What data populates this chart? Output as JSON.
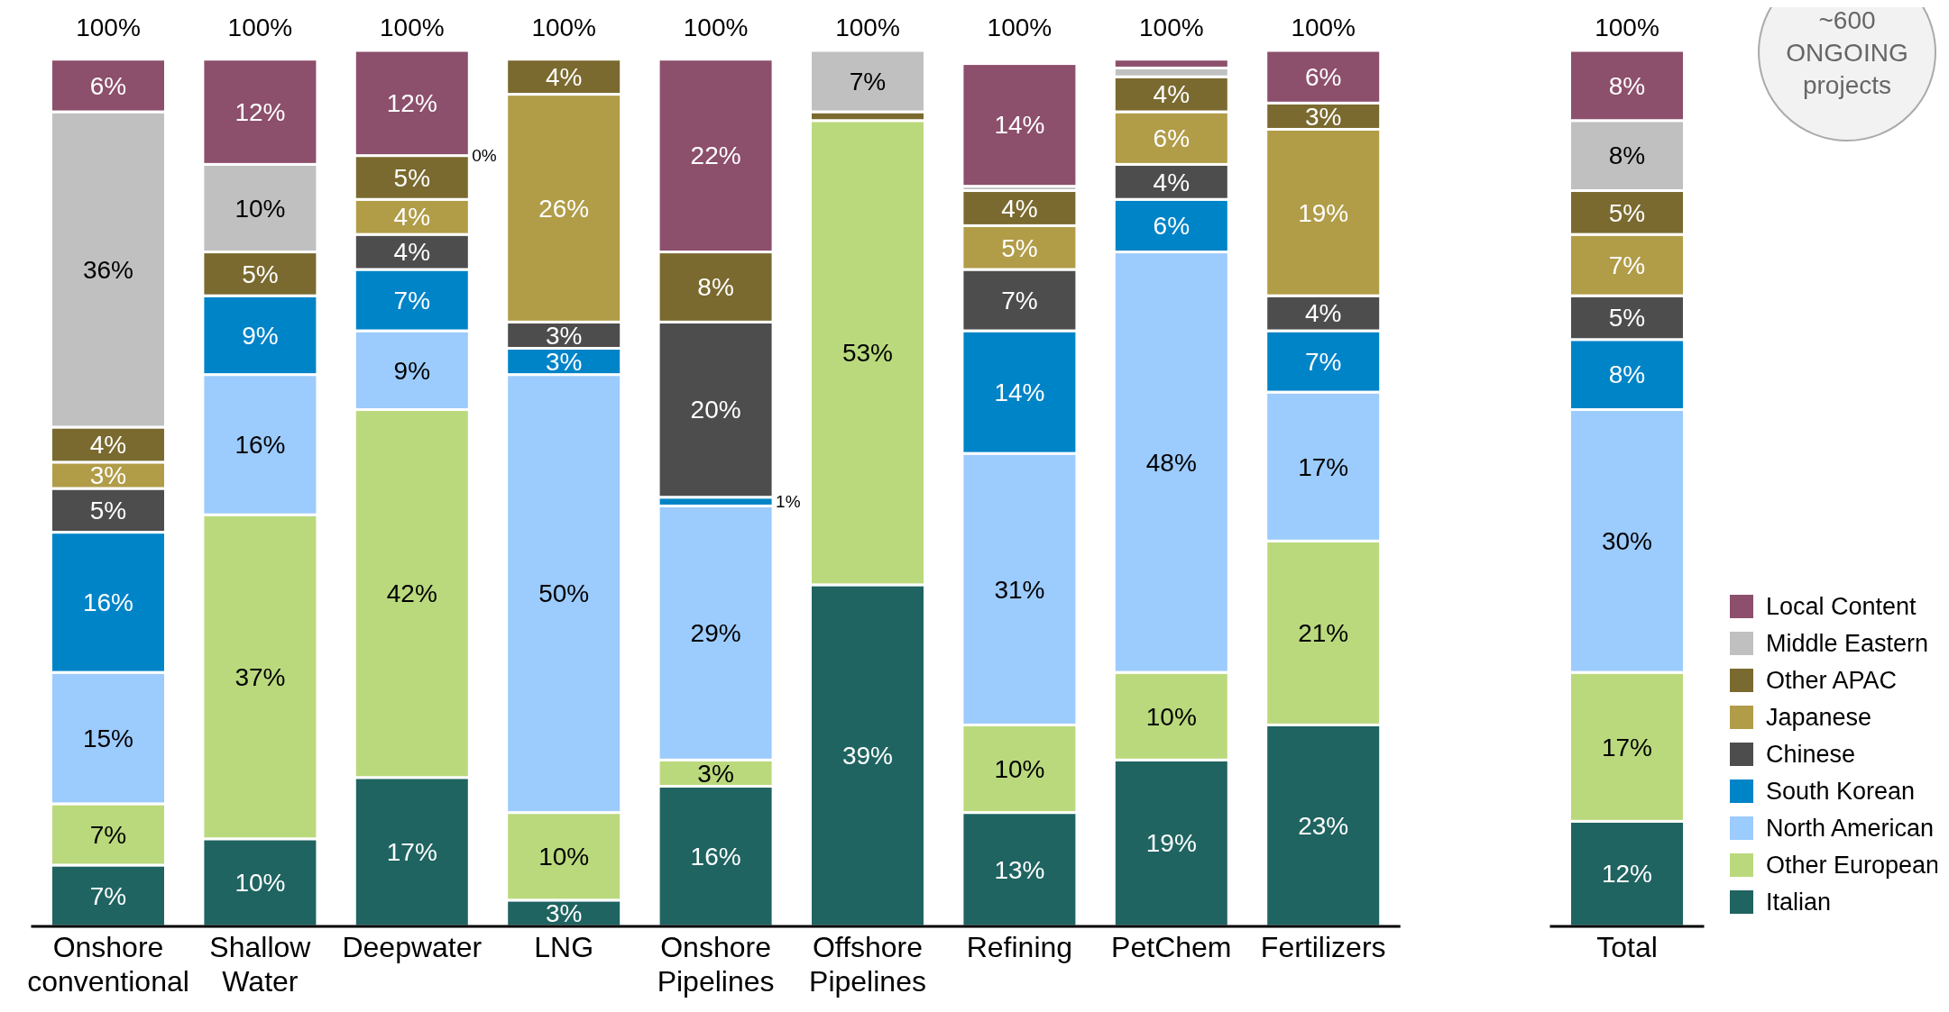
{
  "chart_data": {
    "type": "bar",
    "stacked": true,
    "categories": [
      "Onshore conventional",
      "Shallow Water",
      "Deepwater",
      "LNG",
      "Onshore Pipelines",
      "Offshore Pipelines",
      "Refining",
      "PetChem",
      "Fertilizers",
      null,
      "Total"
    ],
    "ylim": [
      0,
      100
    ],
    "tick_labels": "x",
    "legend": "right",
    "series": [
      {
        "name": "Italian",
        "color": "#1f6461",
        "values": [
          7,
          10,
          17,
          3,
          16,
          39,
          13,
          19,
          23,
          null,
          12
        ],
        "value_labels": [
          "7%",
          "10%",
          "17%",
          "3%",
          "16%",
          "39%",
          "13%",
          "19%",
          "23%",
          null,
          "12%"
        ]
      },
      {
        "name": "Other European",
        "color": "#bad97d",
        "values": [
          7,
          37,
          42,
          10,
          3,
          53,
          10,
          10,
          21,
          null,
          17
        ],
        "value_labels": [
          "7%",
          "37%",
          "42%",
          "10%",
          "3%",
          "53%",
          "10%",
          "10%",
          "21%",
          null,
          "17%"
        ]
      },
      {
        "name": "North American",
        "color": "#9ccbfd",
        "values": [
          15,
          16,
          9,
          50,
          29,
          null,
          31,
          48,
          17,
          null,
          30
        ],
        "value_labels": [
          "15%",
          "16%",
          "9%",
          "50%",
          "29%",
          null,
          "31%",
          "48%",
          "17%",
          null,
          "30%"
        ]
      },
      {
        "name": "South Korean",
        "color": "#0084c8",
        "values": [
          16,
          9,
          7,
          3,
          1,
          null,
          14,
          6,
          7,
          null,
          8
        ],
        "value_labels": [
          "16%",
          "9%",
          "7%",
          "3%",
          "1%",
          null,
          "14%",
          "6%",
          "7%",
          null,
          "8%"
        ]
      },
      {
        "name": "Chinese",
        "color": "#4d4d4d",
        "values": [
          5,
          null,
          4,
          3,
          20,
          null,
          7,
          4,
          4,
          null,
          5
        ],
        "value_labels": [
          "5%",
          null,
          "4%",
          "3%",
          "20%",
          null,
          "7%",
          "4%",
          "4%",
          null,
          "5%"
        ]
      },
      {
        "name": "Japanese",
        "color": "#b19c48",
        "values": [
          3,
          null,
          4,
          26,
          null,
          null,
          5,
          6,
          19,
          null,
          7
        ],
        "value_labels": [
          "3%",
          null,
          "4%",
          "26%",
          null,
          null,
          "5%",
          "6%",
          "19%",
          null,
          "7%"
        ]
      },
      {
        "name": "Other APAC",
        "color": "#7a6a2f",
        "values": [
          4,
          5,
          5,
          4,
          8,
          1,
          4,
          4,
          3,
          null,
          5
        ],
        "value_labels": [
          "4%",
          "5%",
          "5%",
          "4%",
          "8%",
          null,
          "4%",
          "4%",
          "3%",
          null,
          "5%"
        ]
      },
      {
        "name": "Middle Eastern",
        "color": "#c0c0c0",
        "values": [
          36,
          10,
          0,
          null,
          null,
          7,
          0.5,
          1,
          null,
          null,
          8
        ],
        "value_labels": [
          "36%",
          "10%",
          "0%",
          null,
          null,
          "7%",
          null,
          null,
          null,
          null,
          "8%"
        ]
      },
      {
        "name": "Local Content",
        "color": "#8c4f6c",
        "values": [
          6,
          12,
          12,
          null,
          22,
          null,
          14,
          1,
          6,
          null,
          8
        ],
        "value_labels": [
          "6%",
          "12%",
          "12%",
          null,
          "22%",
          null,
          "14%",
          null,
          "6%",
          null,
          "8%"
        ]
      }
    ],
    "totals": [
      "100%",
      "100%",
      "100%",
      "100%",
      "100%",
      "100%",
      "100%",
      "100%",
      "100%",
      null,
      "100%"
    ],
    "annotations": [
      "~600 ONGOING projects"
    ]
  }
}
